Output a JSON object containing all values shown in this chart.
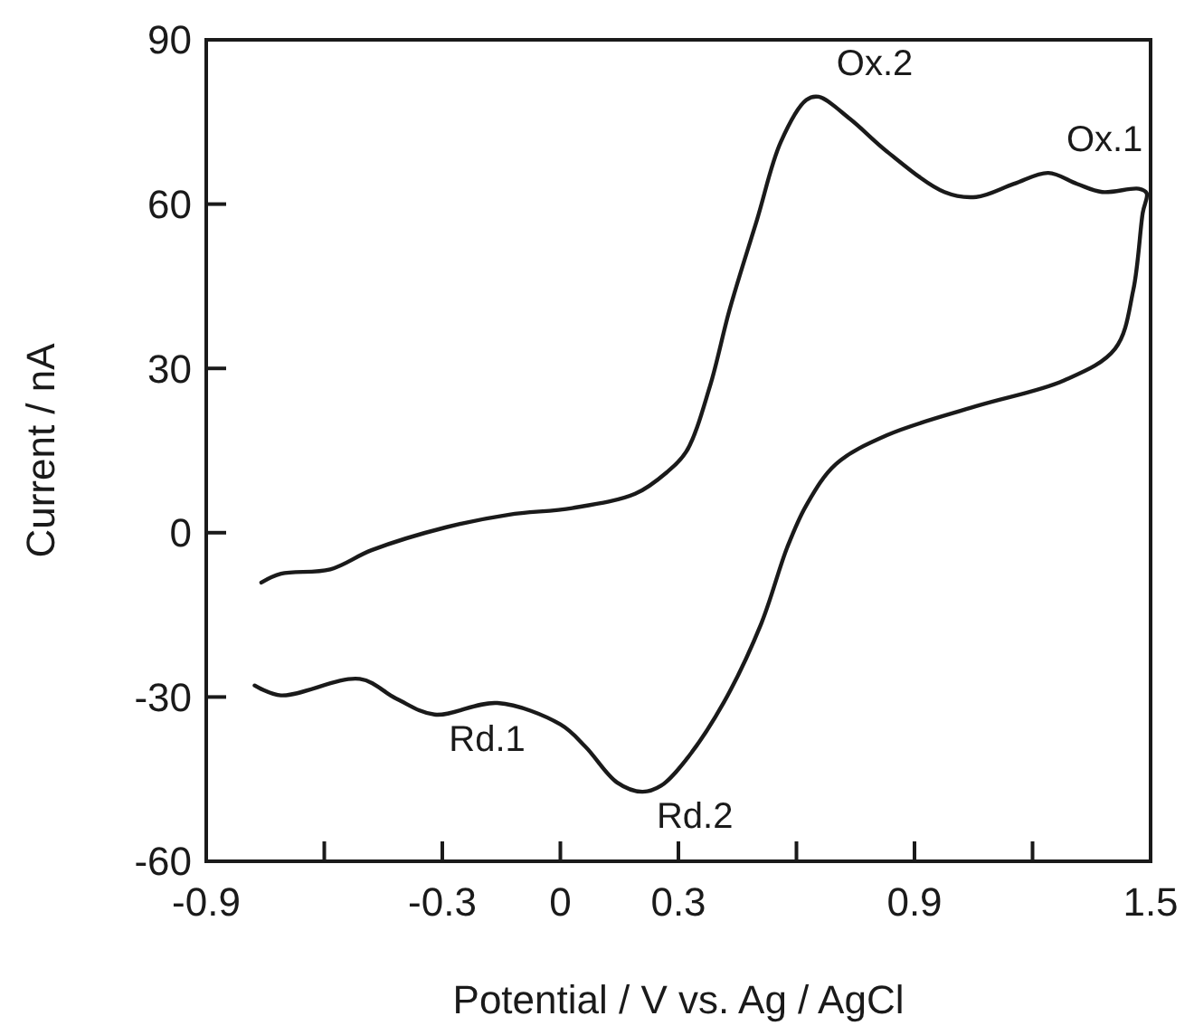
{
  "chart_data": {
    "type": "line",
    "xlabel": "Potential / V vs. Ag / AgCl",
    "ylabel": "Current / nA",
    "xlim": [
      -0.9,
      1.5
    ],
    "ylim": [
      -60,
      90
    ],
    "xticks": [
      -0.9,
      {
        "value": -0.6,
        "label": null
      },
      -0.3,
      0,
      0.3,
      {
        "value": 0.6,
        "label": null
      },
      0.9,
      {
        "value": 1.2,
        "label": null
      },
      1.5
    ],
    "yticks": [
      -60,
      -30,
      0,
      30,
      60,
      90
    ],
    "grid": false,
    "marker": "none",
    "line_style": "solid",
    "series": [
      {
        "color": "#1a1a1a",
        "x": [
          -0.76,
          -0.71,
          -0.585,
          -0.48,
          -0.29,
          -0.13,
          0.03,
          0.19,
          0.27,
          0.32,
          0.38,
          0.43,
          0.5,
          0.56,
          0.625,
          0.656,
          0.737,
          0.83,
          0.976,
          1.057,
          1.153,
          1.24,
          1.313,
          1.377,
          1.47,
          1.49,
          1.48,
          1.456,
          1.41,
          1.28,
          1.057,
          0.83,
          0.7,
          0.625,
          0.577,
          0.51,
          0.416,
          0.32,
          0.256,
          0.208,
          0.144,
          0.064,
          0.0,
          -0.16,
          -0.32,
          -0.417,
          -0.51,
          -0.71,
          -0.777
        ],
        "values": [
          -9.1,
          -7.5,
          -6.7,
          -3.2,
          1.0,
          3.3,
          4.5,
          7.1,
          11,
          14.8,
          26.7,
          40.7,
          57.2,
          71.3,
          79,
          79.6,
          75.5,
          69.6,
          62.2,
          61.3,
          63.7,
          65.7,
          63.7,
          62.2,
          62.8,
          62,
          58.4,
          44.3,
          33.6,
          27.8,
          23.1,
          17.8,
          12.5,
          5,
          -2.6,
          -16.7,
          -30.9,
          -41.4,
          -46.2,
          -47.3,
          -45.6,
          -39.1,
          -35,
          -31.1,
          -33.2,
          -30.3,
          -26.7,
          -29.7,
          -27.9
        ]
      }
    ],
    "annotations": [
      {
        "text": "Ox.2",
        "x": 0.656,
        "y": 79.6
      },
      {
        "text": "Ox.1",
        "x": 1.24,
        "y": 65.7
      },
      {
        "text": "Rd.1",
        "x": -0.32,
        "y": -33.2
      },
      {
        "text": "Rd.2",
        "x": 0.208,
        "y": -47.3
      }
    ]
  }
}
